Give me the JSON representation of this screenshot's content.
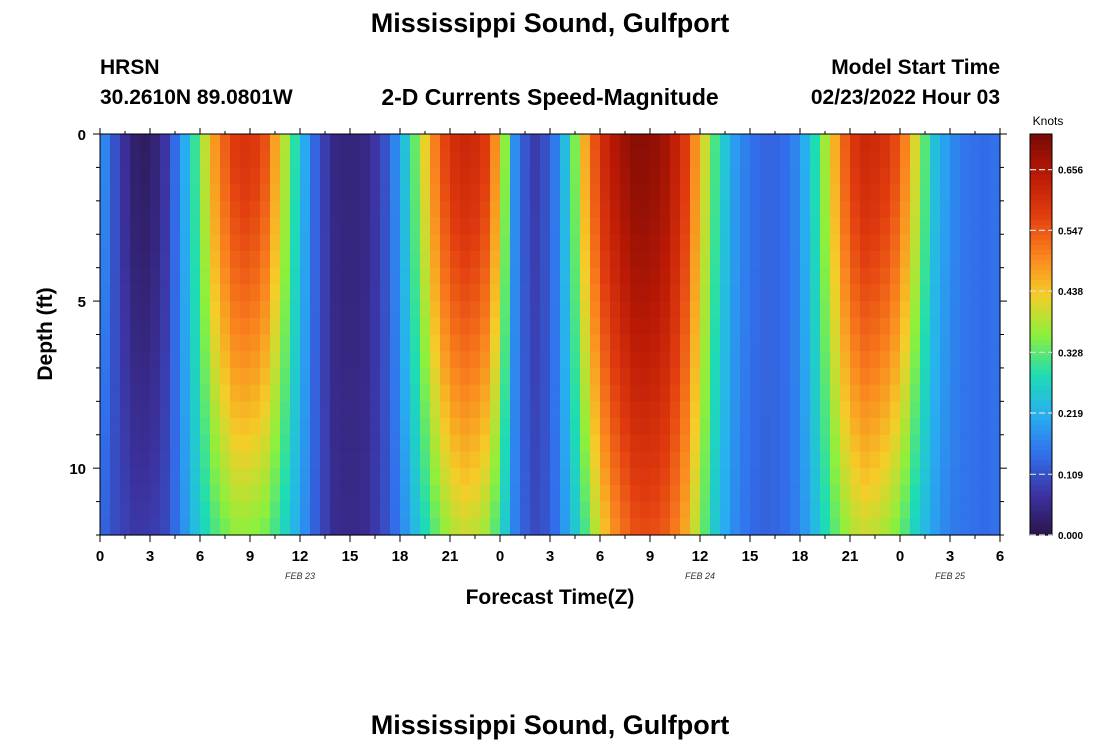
{
  "page": {
    "title": "Mississippi Sound, Gulfport",
    "repeated_title": "Mississippi Sound, Gulfport",
    "header_left_line1": "HRSN",
    "header_left_line2": "30.2610N  89.0801W",
    "header_center": "2-D Currents Speed-Magnitude",
    "header_right_line1": "Model Start Time",
    "header_right_line2": "02/23/2022 Hour 03"
  },
  "chart_data": {
    "type": "heatmap",
    "title": "2-D Currents Speed-Magnitude",
    "xlabel": "Forecast Time(Z)",
    "ylabel": "Depth (ft)",
    "xlim": [
      0,
      54
    ],
    "ylim": [
      0,
      12
    ],
    "y_reversed": true,
    "x_ticks": [
      0,
      3,
      6,
      9,
      12,
      15,
      18,
      21,
      24,
      27,
      30,
      33,
      36,
      39,
      42,
      45,
      48,
      51,
      54
    ],
    "x_tick_labels": [
      "0",
      "3",
      "6",
      "9",
      "12",
      "15",
      "18",
      "21",
      "0",
      "3",
      "6",
      "9",
      "12",
      "15",
      "18",
      "21",
      "0",
      "3",
      "6"
    ],
    "y_ticks": [
      0,
      5,
      10
    ],
    "y_tick_labels": [
      "0",
      "5",
      "10"
    ],
    "date_labels": [
      {
        "label": "FEB 23",
        "x": 12
      },
      {
        "label": "FEB 24",
        "x": 36
      },
      {
        "label": "FEB 25",
        "x": 51
      }
    ],
    "colorbar": {
      "unit": "Knots",
      "min": 0.0,
      "max": 0.72,
      "ticks": [
        0.0,
        0.109,
        0.219,
        0.328,
        0.438,
        0.547,
        0.656
      ],
      "tick_labels": [
        "0.000",
        "0.109",
        "0.219",
        "0.328",
        "0.438",
        "0.547",
        "0.656"
      ]
    },
    "surface_speed_knots": {
      "x": [
        0,
        1,
        2,
        3,
        4,
        5,
        6,
        7,
        8,
        9,
        10,
        11,
        12,
        13,
        14,
        15,
        16,
        17,
        18,
        19,
        20,
        21,
        22,
        23,
        24,
        25,
        26,
        27,
        28,
        29,
        30,
        31,
        32,
        33,
        34,
        35,
        36,
        37,
        38,
        39,
        40,
        41,
        42,
        43,
        44,
        45,
        46,
        47,
        48,
        49,
        50,
        51,
        52,
        53,
        54
      ],
      "values": [
        0.2,
        0.1,
        0.03,
        0.02,
        0.08,
        0.2,
        0.35,
        0.5,
        0.58,
        0.6,
        0.55,
        0.4,
        0.25,
        0.12,
        0.05,
        0.04,
        0.05,
        0.1,
        0.2,
        0.35,
        0.5,
        0.6,
        0.62,
        0.6,
        0.45,
        0.15,
        0.08,
        0.12,
        0.25,
        0.45,
        0.6,
        0.66,
        0.7,
        0.7,
        0.67,
        0.6,
        0.45,
        0.3,
        0.2,
        0.15,
        0.13,
        0.14,
        0.18,
        0.3,
        0.45,
        0.58,
        0.62,
        0.6,
        0.55,
        0.4,
        0.25,
        0.18,
        0.15,
        0.14,
        0.15
      ]
    },
    "bottom_speed_knots": {
      "x": [
        0,
        1,
        2,
        3,
        4,
        5,
        6,
        7,
        8,
        9,
        10,
        11,
        12,
        13,
        14,
        15,
        16,
        17,
        18,
        19,
        20,
        21,
        22,
        23,
        24,
        25,
        26,
        27,
        28,
        29,
        30,
        31,
        32,
        33,
        34,
        35,
        36,
        37,
        38,
        39,
        40,
        41,
        42,
        43,
        44,
        45,
        46,
        47,
        48,
        49,
        50,
        51,
        52,
        53,
        54
      ],
      "values": [
        0.14,
        0.1,
        0.08,
        0.08,
        0.1,
        0.18,
        0.26,
        0.32,
        0.36,
        0.36,
        0.34,
        0.28,
        0.2,
        0.12,
        0.06,
        0.05,
        0.06,
        0.1,
        0.16,
        0.24,
        0.32,
        0.38,
        0.4,
        0.38,
        0.3,
        0.15,
        0.1,
        0.12,
        0.2,
        0.3,
        0.42,
        0.5,
        0.55,
        0.56,
        0.54,
        0.48,
        0.36,
        0.24,
        0.18,
        0.14,
        0.13,
        0.14,
        0.17,
        0.24,
        0.32,
        0.38,
        0.4,
        0.38,
        0.34,
        0.26,
        0.2,
        0.16,
        0.15,
        0.14,
        0.15
      ]
    },
    "depth_profile_exponent": 1.4
  }
}
